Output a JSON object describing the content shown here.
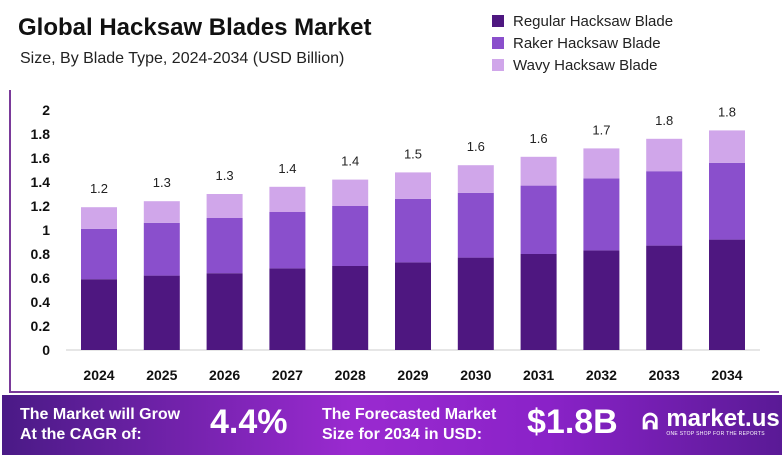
{
  "chart_data": {
    "type": "bar",
    "stacked": true,
    "title": "Global Hacksaw Blades Market",
    "subtitle": "Size, By Blade Type, 2024-2034 (USD Billion)",
    "categories": [
      "2024",
      "2025",
      "2026",
      "2027",
      "2028",
      "2029",
      "2030",
      "2031",
      "2032",
      "2033",
      "2034"
    ],
    "series": [
      {
        "name": "Regular Hacksaw Blade",
        "color": "#4e1780",
        "values": [
          0.59,
          0.62,
          0.64,
          0.68,
          0.7,
          0.73,
          0.77,
          0.8,
          0.83,
          0.87,
          0.92
        ]
      },
      {
        "name": "Raker Hacksaw Blade",
        "color": "#8a4fcc",
        "values": [
          0.42,
          0.44,
          0.46,
          0.47,
          0.5,
          0.53,
          0.54,
          0.57,
          0.6,
          0.62,
          0.64
        ]
      },
      {
        "name": "Wavy Hacksaw Blade",
        "color": "#d0a6ea",
        "values": [
          0.18,
          0.18,
          0.2,
          0.21,
          0.22,
          0.22,
          0.23,
          0.24,
          0.25,
          0.27,
          0.27
        ]
      }
    ],
    "total_labels": [
      "1.2",
      "1.3",
      "1.3",
      "1.4",
      "1.4",
      "1.5",
      "1.6",
      "1.6",
      "1.7",
      "1.8",
      "1.8"
    ],
    "yticks": [
      "0",
      "0.2",
      "0.4",
      "0.6",
      "0.8",
      "1",
      "1.2",
      "1.4",
      "1.6",
      "1.8",
      "2"
    ],
    "ylim": [
      0,
      2
    ],
    "xlabel": "",
    "ylabel": "",
    "grid": false,
    "legend": "top-right"
  },
  "footer": {
    "cagr_text_1": "The Market will Grow",
    "cagr_text_2": "At the CAGR of:",
    "cagr_value": "4.4%",
    "forecast_text_1": "The Forecasted Market",
    "forecast_text_2": "Size for 2034 in USD:",
    "forecast_value": "$1.8B",
    "brand": "market.us",
    "tagline": "ONE STOP SHOP FOR THE REPORTS"
  }
}
